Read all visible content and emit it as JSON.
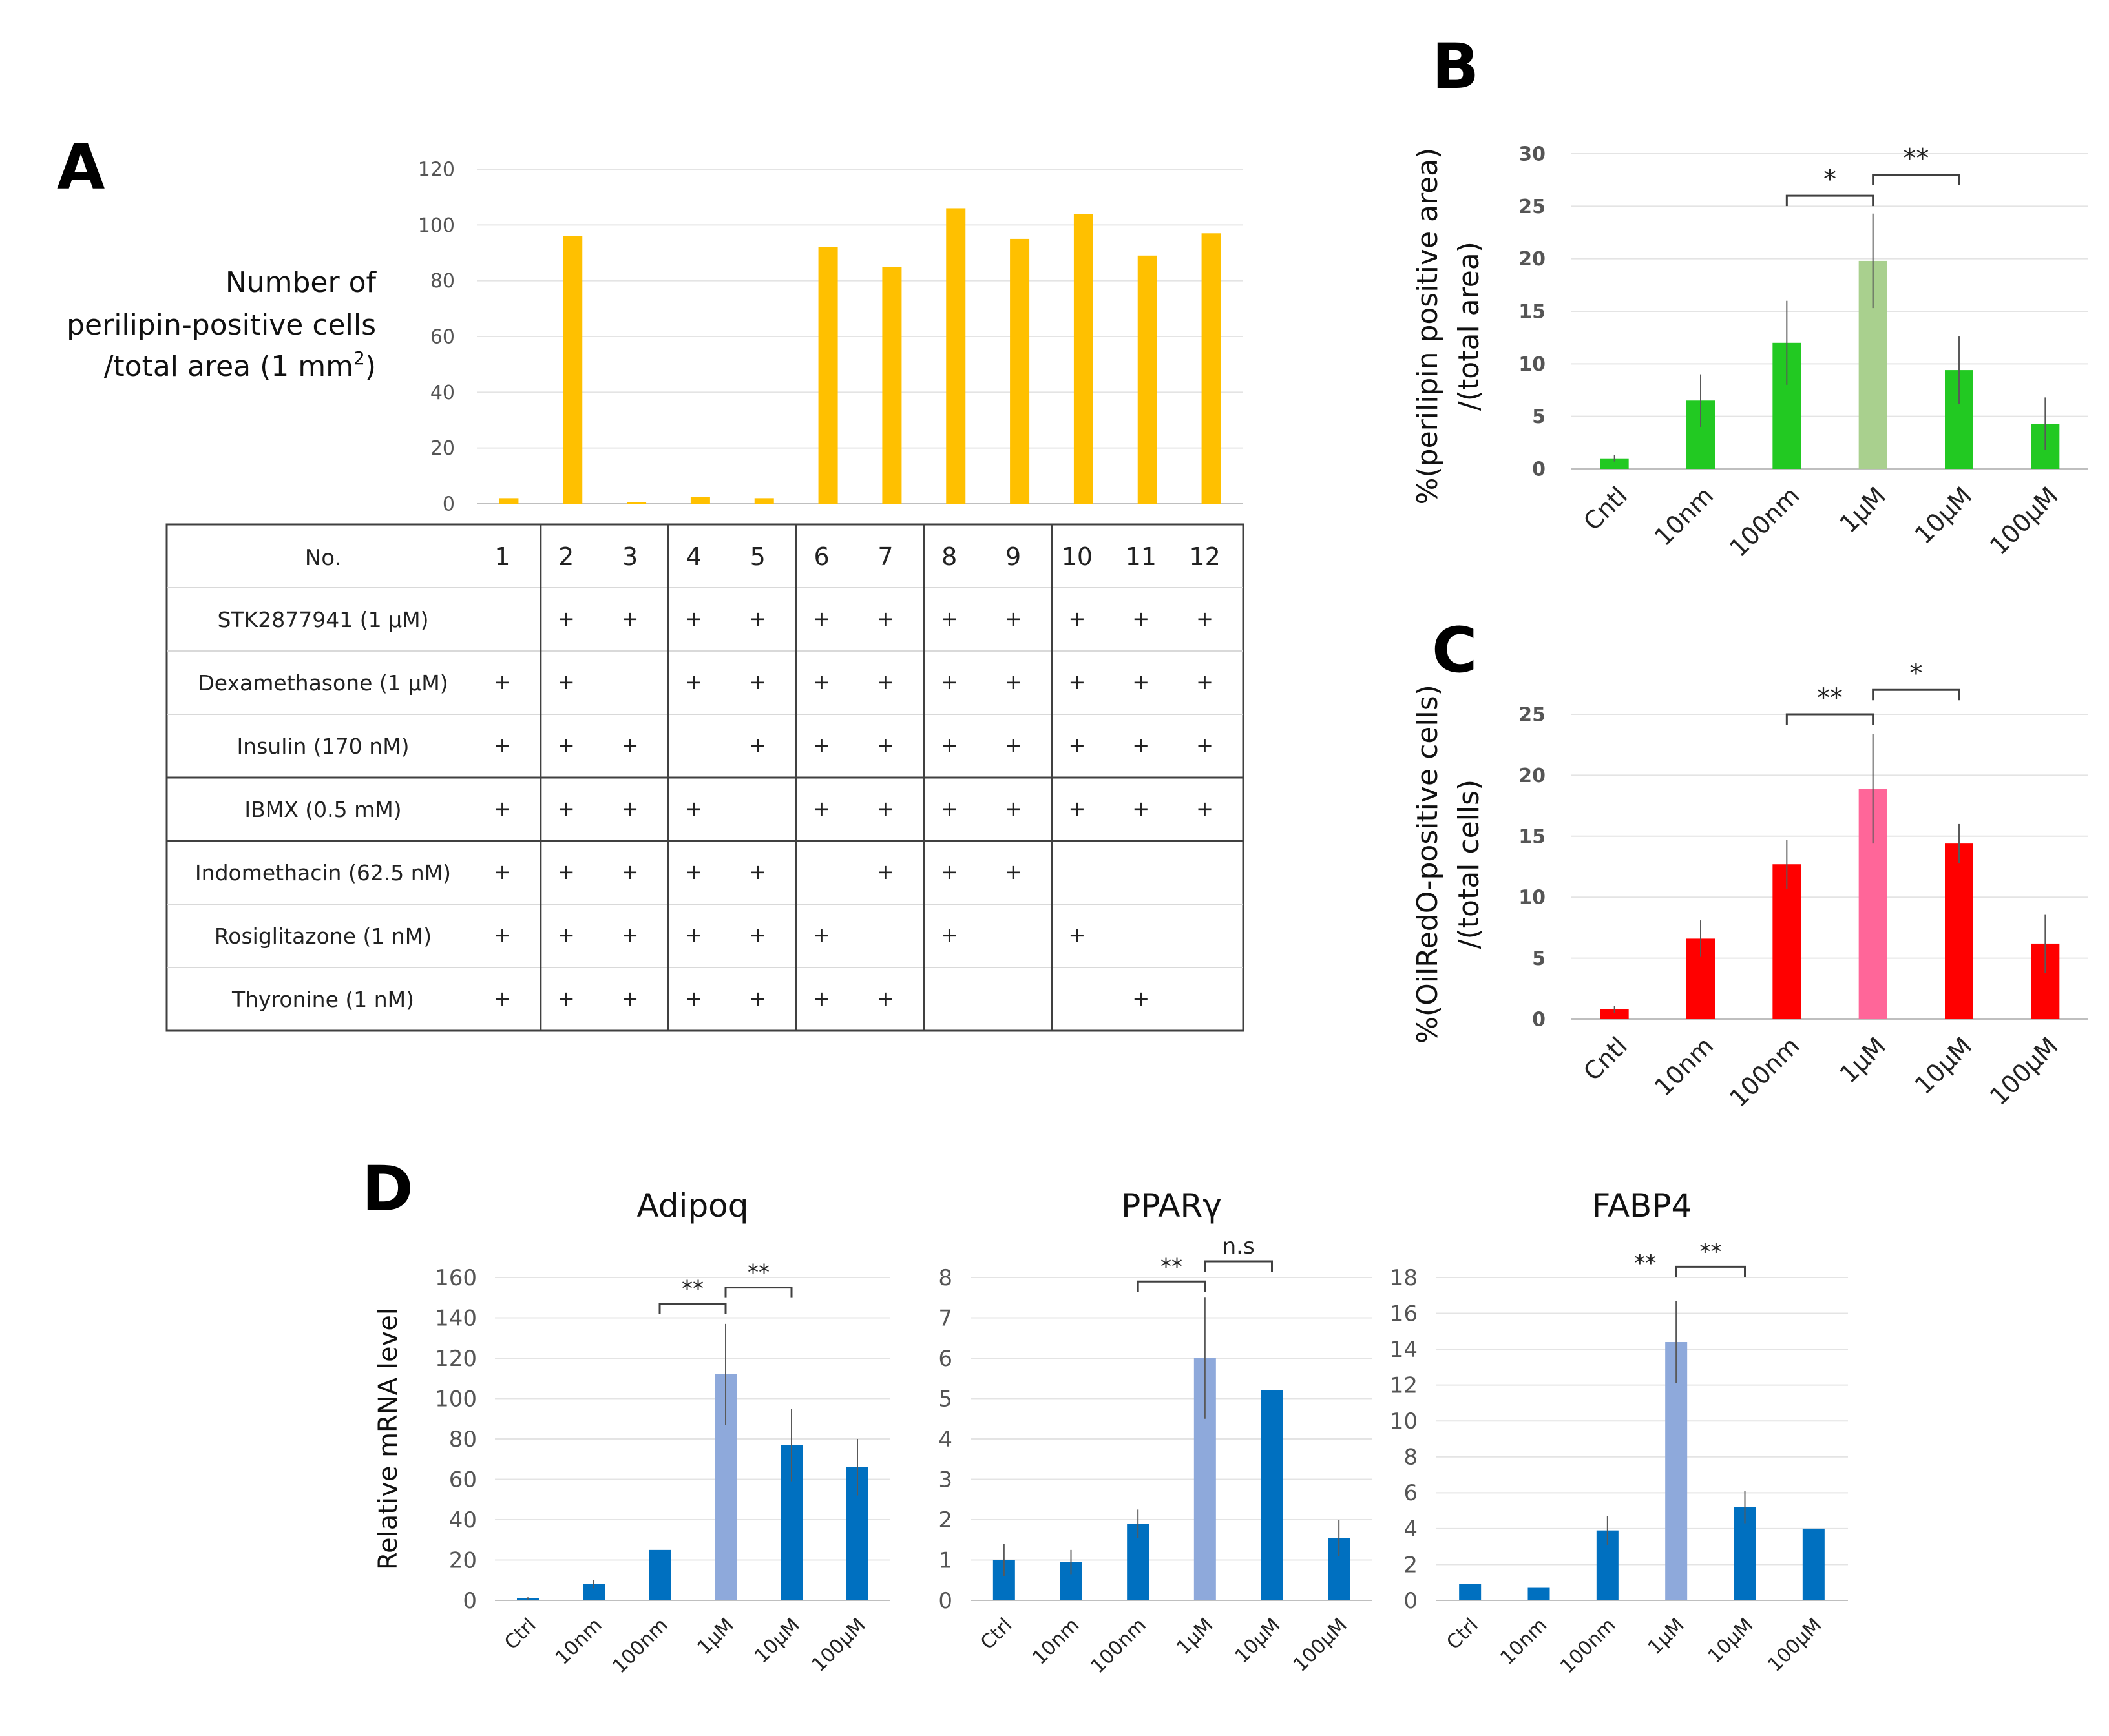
{
  "chart_data": [
    {
      "panel": "A",
      "type": "bar",
      "title": "",
      "ylabel_lines": [
        "Number of",
        "perilipin-positive cells",
        "/total area (1 mm",
        ")"
      ],
      "ylabel_superscript": "2",
      "ylim": [
        0,
        120
      ],
      "yticks": [
        0,
        20,
        40,
        60,
        80,
        100,
        120
      ],
      "grid": true,
      "color": "#FFC000",
      "categories": [
        "1",
        "2",
        "3",
        "4",
        "5",
        "6",
        "7",
        "8",
        "9",
        "10",
        "11",
        "12"
      ],
      "values": [
        2,
        96,
        0.5,
        2.5,
        2,
        92,
        85,
        106,
        95,
        104,
        89,
        97
      ],
      "table": {
        "header": "No.",
        "rows": [
          {
            "label": "STK2877941 (1 µM)",
            "marks": [
              "",
              "+",
              "+",
              "+",
              "+",
              "+",
              "+",
              "+",
              "+",
              "+",
              "+",
              "+"
            ]
          },
          {
            "label": "Dexamethasone (1 µM)",
            "marks": [
              "+",
              "+",
              "",
              "+",
              "+",
              "+",
              "+",
              "+",
              "+",
              "+",
              "+",
              "+"
            ]
          },
          {
            "label": "Insulin (170 nM)",
            "marks": [
              "+",
              "+",
              "+",
              "",
              "+",
              "+",
              "+",
              "+",
              "+",
              "+",
              "+",
              "+"
            ]
          },
          {
            "label": "IBMX (0.5 mM)",
            "marks": [
              "+",
              "+",
              "+",
              "+",
              "",
              "+",
              "+",
              "+",
              "+",
              "+",
              "+",
              "+"
            ]
          },
          {
            "label": "Indomethacin (62.5 nM)",
            "marks": [
              "+",
              "+",
              "+",
              "+",
              "+",
              "",
              "+",
              "+",
              "+",
              "",
              "",
              ""
            ]
          },
          {
            "label": "Rosiglitazone (1 nM)",
            "marks": [
              "+",
              "+",
              "+",
              "+",
              "+",
              "+",
              "",
              "+",
              "",
              "+",
              "",
              ""
            ]
          },
          {
            "label": "Thyronine (1 nM)",
            "marks": [
              "+",
              "+",
              "+",
              "+",
              "+",
              "+",
              "+",
              "",
              "",
              "",
              "+",
              ""
            ]
          }
        ]
      }
    },
    {
      "panel": "B",
      "type": "bar",
      "title": "",
      "ylabel_lines": [
        "%(perilipin positive area)",
        "/(total area)"
      ],
      "ylim": [
        0,
        30
      ],
      "yticks": [
        0,
        5,
        10,
        15,
        20,
        25,
        30
      ],
      "grid": true,
      "categories": [
        "Cntl",
        "10nm",
        "100nm",
        "1μM",
        "10μM",
        "100μM"
      ],
      "values": [
        1,
        6.5,
        12,
        19.8,
        9.4,
        4.3
      ],
      "errors": [
        0.3,
        2.5,
        4,
        4.5,
        3.2,
        2.5
      ],
      "colors": [
        "#22C922",
        "#22C922",
        "#22C922",
        "#A9D08E",
        "#22C922",
        "#22C922"
      ],
      "significance": [
        {
          "from": 2,
          "to": 3,
          "label": "*",
          "y": 26
        },
        {
          "from": 3,
          "to": 4,
          "label": "**",
          "y": 28
        }
      ]
    },
    {
      "panel": "C",
      "type": "bar",
      "title": "",
      "ylabel_lines": [
        "%(OilRedO-positive cells)",
        "/(total cells)"
      ],
      "ylim": [
        0,
        25
      ],
      "yticks": [
        0,
        5,
        10,
        15,
        20,
        25
      ],
      "grid": true,
      "categories": [
        "Cntl",
        "10nm",
        "100nm",
        "1μM",
        "10μM",
        "100μM"
      ],
      "values": [
        0.8,
        6.6,
        12.7,
        18.9,
        14.4,
        6.2
      ],
      "errors": [
        0.3,
        1.5,
        2,
        4.5,
        1.6,
        2.4
      ],
      "colors": [
        "#FF0000",
        "#FF0000",
        "#FF0000",
        "#FF6699",
        "#FF0000",
        "#FF0000"
      ],
      "significance": [
        {
          "from": 2,
          "to": 3,
          "label": "**",
          "y": 25
        },
        {
          "from": 3,
          "to": 4,
          "label": "*",
          "y": 27
        }
      ]
    },
    {
      "panel": "D",
      "type": "bar",
      "title": "Adipoq",
      "ylabel_lines": [
        "Relative mRNA level"
      ],
      "ylim": [
        0,
        160
      ],
      "yticks": [
        0,
        20,
        40,
        60,
        80,
        100,
        120,
        140,
        160
      ],
      "grid": true,
      "categories": [
        "Ctrl",
        "10nm",
        "100nm",
        "1μM",
        "10μM",
        "100μM"
      ],
      "values": [
        1,
        8,
        25,
        112,
        77,
        66
      ],
      "errors": [
        0.5,
        2,
        0,
        25,
        18,
        14
      ],
      "colors": [
        "#0070C0",
        "#0070C0",
        "#0070C0",
        "#8EA9DB",
        "#0070C0",
        "#0070C0"
      ],
      "significance": [
        {
          "from": 2,
          "to": 3,
          "label": "**",
          "y": 147
        },
        {
          "from": 3,
          "to": 4,
          "label": "**",
          "y": 155
        }
      ]
    },
    {
      "panel": "D",
      "type": "bar",
      "title": "PPARγ",
      "ylabel_lines": [],
      "ylim": [
        0,
        8
      ],
      "yticks": [
        0,
        1,
        2,
        3,
        4,
        5,
        6,
        7,
        8
      ],
      "grid": true,
      "categories": [
        "Ctrl",
        "10nm",
        "100nm",
        "1μM",
        "10μM",
        "100μM"
      ],
      "values": [
        1,
        0.95,
        1.9,
        6,
        5.2,
        1.55
      ],
      "errors": [
        0.4,
        0.3,
        0.35,
        1.5,
        0,
        0.45
      ],
      "colors": [
        "#0070C0",
        "#0070C0",
        "#0070C0",
        "#8EA9DB",
        "#0070C0",
        "#0070C0"
      ],
      "significance": [
        {
          "from": 2,
          "to": 3,
          "label": "**",
          "y": 7.9
        },
        {
          "from": 3,
          "to": 4,
          "label": "n.s",
          "y": 8.4
        }
      ]
    },
    {
      "panel": "D",
      "type": "bar",
      "title": "FABP4",
      "ylabel_lines": [],
      "ylim": [
        0,
        18
      ],
      "yticks": [
        0,
        2,
        4,
        6,
        8,
        10,
        12,
        14,
        16,
        18
      ],
      "grid": true,
      "categories": [
        "Ctrl",
        "10nm",
        "100nm",
        "1μM",
        "10μM",
        "100μM"
      ],
      "values": [
        0.9,
        0.7,
        3.9,
        14.4,
        5.2,
        4
      ],
      "errors": [
        0,
        0,
        0.8,
        2.3,
        0.9,
        0
      ],
      "colors": [
        "#0070C0",
        "#0070C0",
        "#0070C0",
        "#8EA9DB",
        "#0070C0",
        "#0070C0"
      ],
      "significance": [
        {
          "from": 3,
          "to": 4,
          "label": "**",
          "y": 18.6
        }
      ],
      "annotations": [
        {
          "label": "**",
          "at": 2.55,
          "y": 18.4
        }
      ]
    }
  ],
  "panel_labels": [
    "A",
    "B",
    "C",
    "D"
  ]
}
